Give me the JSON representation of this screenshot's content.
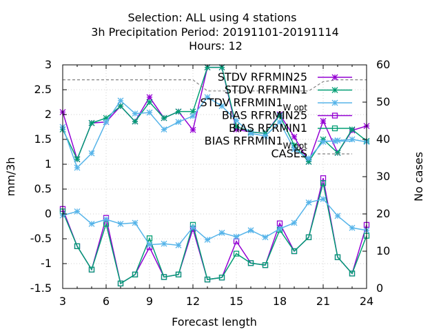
{
  "chart_data": {
    "type": "line",
    "title_lines": [
      "Selection: ALL using     4 stations",
      "3h Precipitation   Period: 20191101-20191114",
      "Hours:  12"
    ],
    "xlabel": "Forecast length",
    "ylabel": "mm/3h",
    "y2label": "No cases",
    "xlim": [
      3,
      24
    ],
    "ylim": [
      -1.5,
      3
    ],
    "y2lim": [
      0,
      60
    ],
    "x_ticks": [
      3,
      6,
      9,
      12,
      15,
      18,
      21,
      24
    ],
    "y_ticks": [
      -1.5,
      -1,
      -0.5,
      0,
      0.5,
      1,
      1.5,
      2,
      2.5,
      3
    ],
    "y_tick_labels": [
      "-1.5",
      "-1",
      "-0.5",
      "0",
      "0.5",
      "1",
      "1.5",
      "2",
      "2.5",
      "3"
    ],
    "y2_ticks": [
      0,
      10,
      20,
      30,
      40,
      50,
      60
    ],
    "grid": true,
    "legend_position": "top-right",
    "x": [
      3,
      4,
      5,
      6,
      7,
      8,
      9,
      10,
      11,
      12,
      13,
      14,
      15,
      16,
      17,
      18,
      19,
      20,
      21,
      22,
      23,
      24
    ],
    "series": [
      {
        "name": "STDV RFRMIN25",
        "legend_main": "STDV RFRMIN25",
        "legend_sub": "",
        "axis": "y1",
        "color": "#9400d3",
        "marker": "x-star",
        "dash": false,
        "values": [
          2.05,
          1.1,
          1.83,
          1.85,
          2.17,
          1.86,
          2.35,
          1.93,
          2.06,
          1.69,
          2.95,
          2.95,
          1.7,
          1.65,
          1.62,
          2.0,
          1.55,
          1.05,
          1.87,
          1.23,
          1.68,
          1.77
        ]
      },
      {
        "name": "STDV RFRMIN1",
        "legend_main": "STDV RFRMIN1",
        "legend_sub": "",
        "axis": "y1",
        "color": "#009e73",
        "marker": "x-star",
        "dash": false,
        "values": [
          1.7,
          1.1,
          1.83,
          1.93,
          2.17,
          1.86,
          2.25,
          1.93,
          2.06,
          2.06,
          2.95,
          2.95,
          1.76,
          1.65,
          1.62,
          1.98,
          1.38,
          1.05,
          1.5,
          1.23,
          1.7,
          1.47
        ]
      },
      {
        "name": "STDV RFRMIN1 W opt",
        "legend_main": "STDV RFRMIN1",
        "legend_sub": "W opt",
        "axis": "y1",
        "color": "#56b4e9",
        "marker": "x-star",
        "dash": false,
        "values": [
          1.75,
          0.93,
          1.22,
          1.85,
          2.28,
          2.02,
          2.04,
          1.7,
          1.85,
          1.97,
          2.35,
          2.17,
          1.88,
          1.62,
          1.57,
          1.85,
          1.3,
          1.12,
          1.45,
          1.48,
          1.5,
          1.45
        ]
      },
      {
        "name": "BIAS RFRMIN25",
        "legend_main": "BIAS RFRMIN25",
        "legend_sub": "",
        "axis": "y1",
        "color": "#9400d3",
        "marker": "square",
        "dash": false,
        "values": [
          0.1,
          -0.65,
          -1.12,
          -0.08,
          -1.4,
          -1.22,
          -0.67,
          -1.27,
          -1.22,
          -0.3,
          -1.32,
          -1.28,
          -0.55,
          -0.99,
          -1.03,
          -0.19,
          -0.75,
          -0.47,
          0.72,
          -0.87,
          -1.2,
          -0.22
        ]
      },
      {
        "name": "BIAS RFRMIN1",
        "legend_main": "BIAS RFRMIN1",
        "legend_sub": "",
        "axis": "y1",
        "color": "#009e73",
        "marker": "square",
        "dash": false,
        "values": [
          0.05,
          -0.65,
          -1.12,
          -0.2,
          -1.4,
          -1.22,
          -0.49,
          -1.27,
          -1.22,
          -0.22,
          -1.32,
          -1.28,
          -0.8,
          -0.99,
          -1.03,
          -0.32,
          -0.75,
          -0.47,
          0.62,
          -0.87,
          -1.2,
          -0.44
        ]
      },
      {
        "name": "BIAS RFRMIN1 W opt",
        "legend_main": "BIAS RFRMIN1",
        "legend_sub": "W opt",
        "axis": "y1",
        "color": "#56b4e9",
        "marker": "x-star",
        "dash": false,
        "values": [
          -0.03,
          0.05,
          -0.2,
          -0.11,
          -0.2,
          -0.18,
          -0.62,
          -0.6,
          -0.63,
          -0.27,
          -0.52,
          -0.38,
          -0.46,
          -0.33,
          -0.47,
          -0.3,
          -0.18,
          0.23,
          0.3,
          -0.04,
          -0.28,
          -0.33
        ]
      },
      {
        "name": "CASES",
        "legend_main": "CASES",
        "legend_sub": "",
        "axis": "y2",
        "color": "#808080",
        "marker": "none",
        "dash": true,
        "values": [
          56,
          56,
          56,
          56,
          56,
          56,
          56,
          56,
          56,
          56,
          53,
          53,
          53,
          53,
          53,
          53,
          53,
          53,
          55.5,
          56,
          56,
          56
        ]
      }
    ]
  }
}
